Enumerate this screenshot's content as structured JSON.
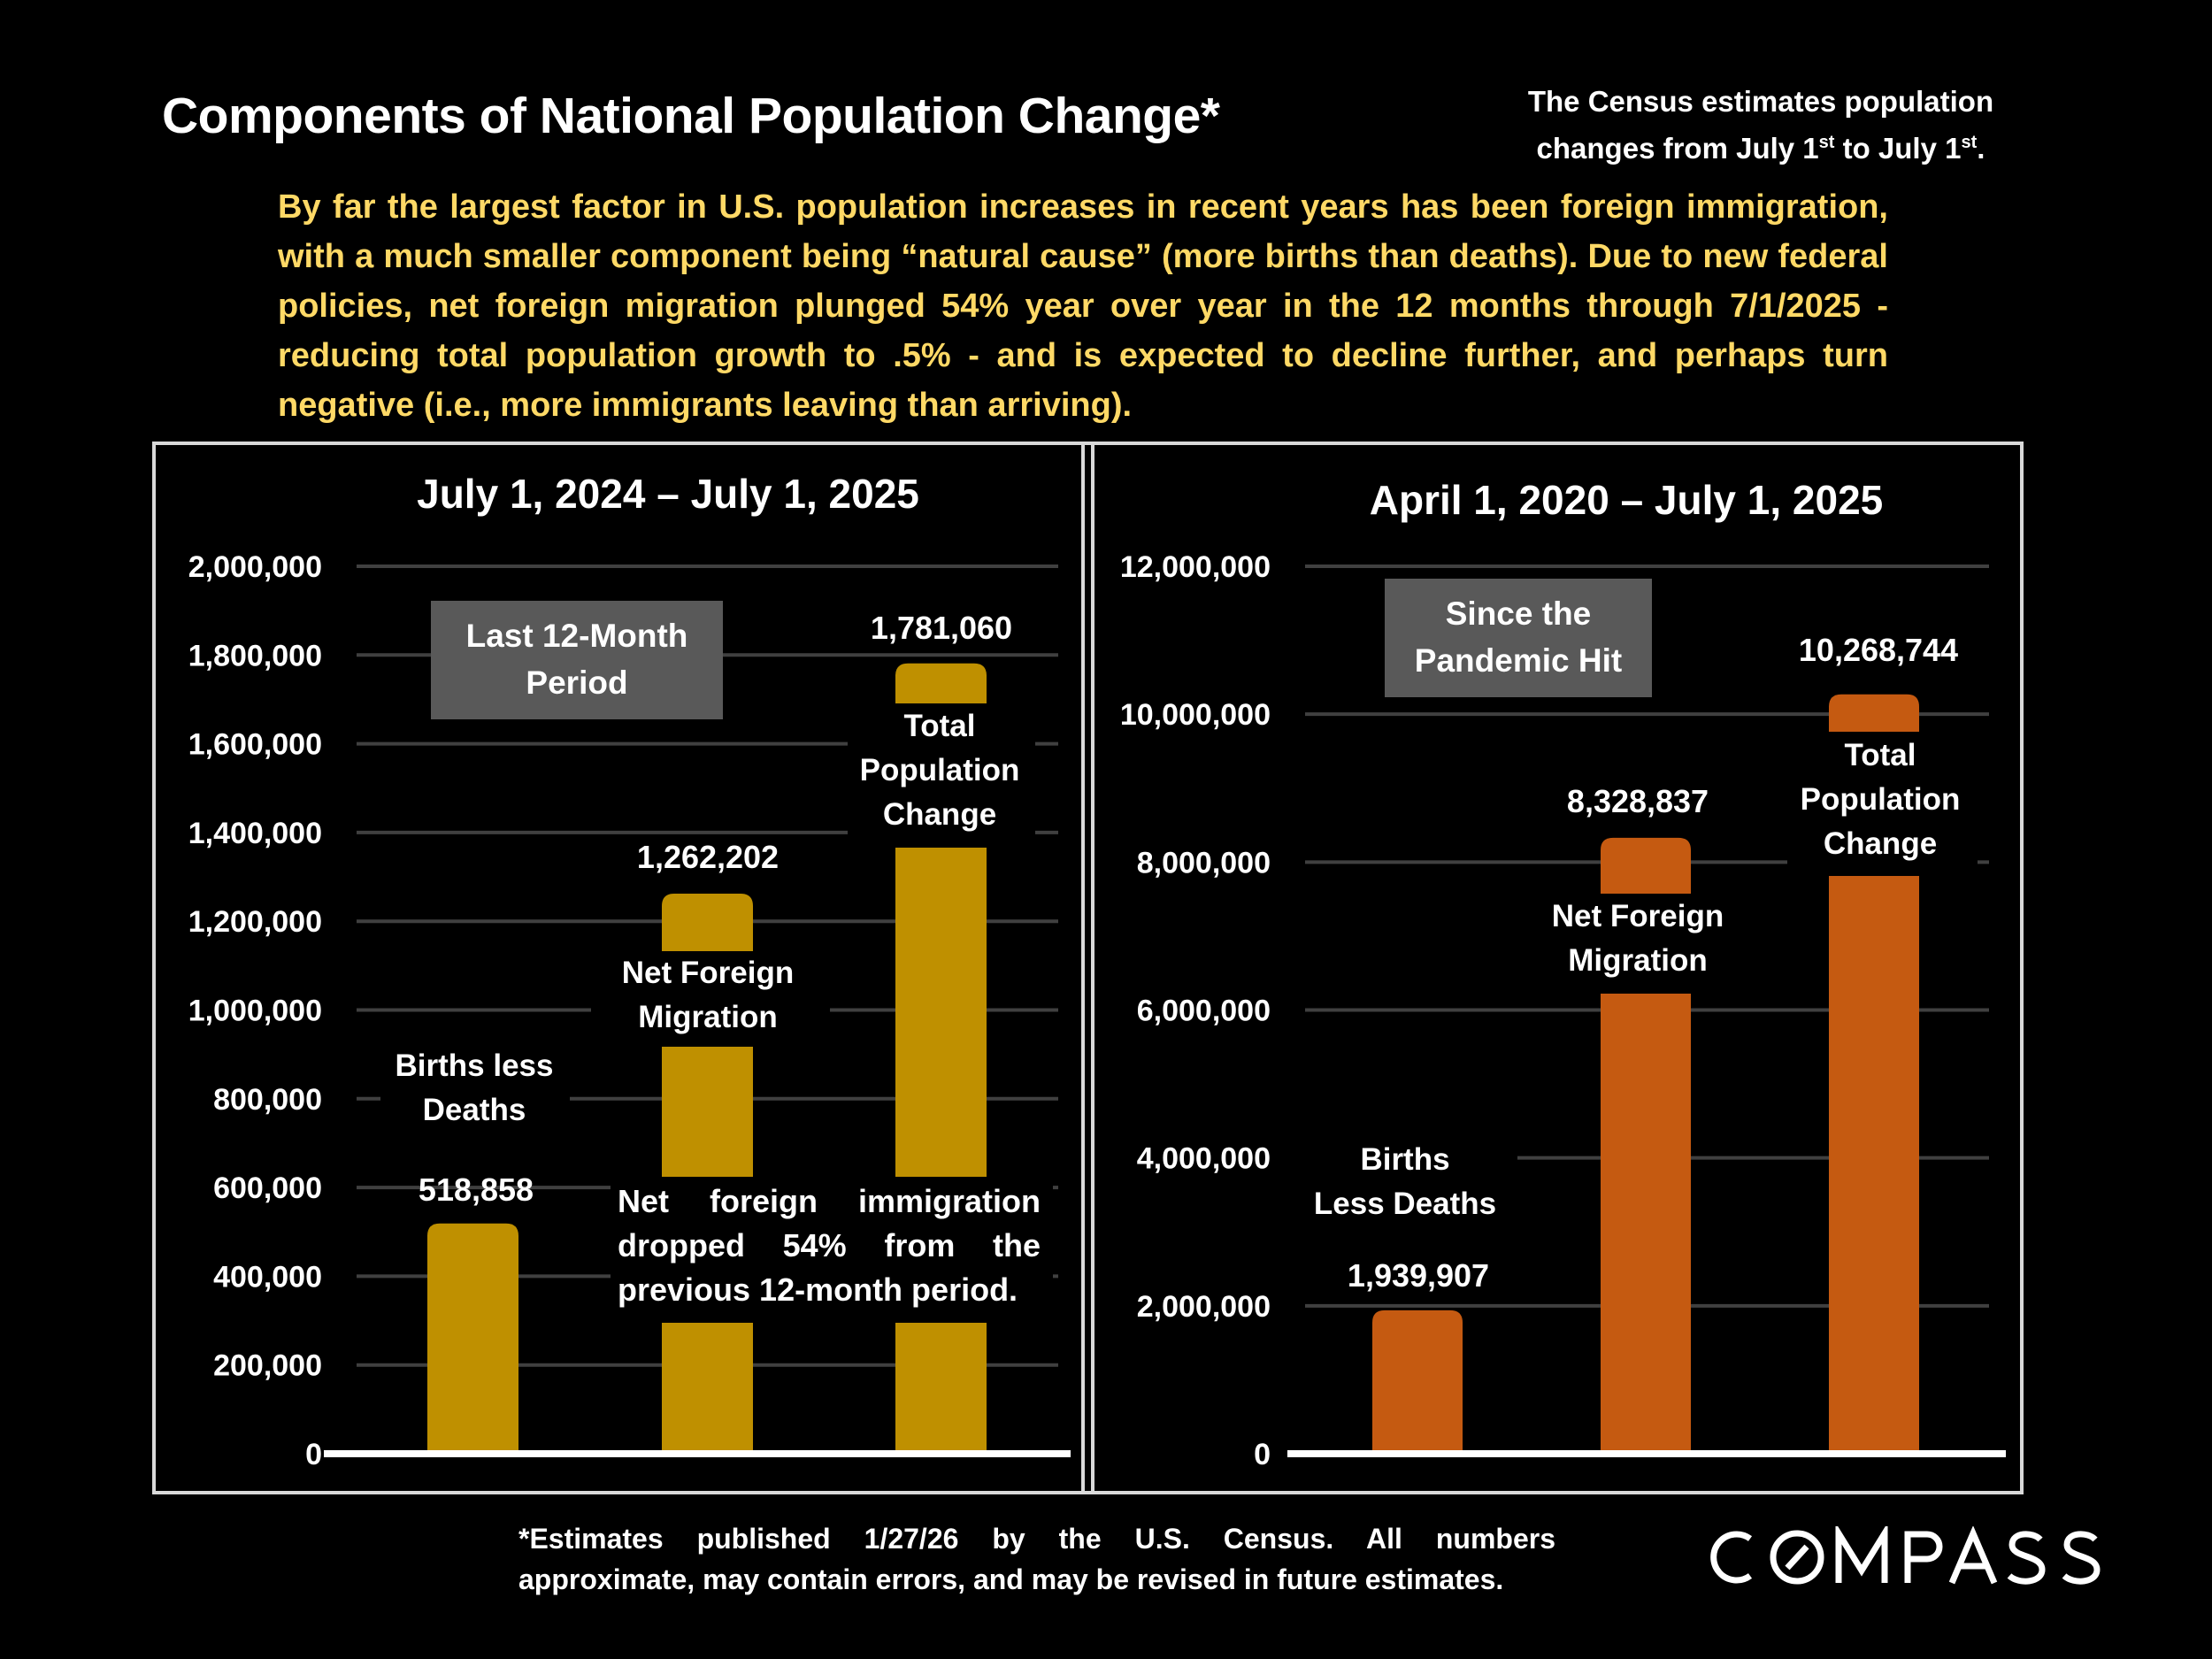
{
  "header": {
    "title": "Components of National Population Change*",
    "census_note_line1": "The Census estimates population",
    "census_note_line2_pre": "changes from July 1",
    "census_note_sup1": "st",
    "census_note_line2_mid": " to July 1",
    "census_note_sup2": "st",
    "census_note_line2_post": "."
  },
  "summary": "By far the largest factor in U.S. population increases in recent years has been foreign immigration, with a much smaller component being “natural cause” (more births than deaths). Due to new federal policies, net foreign migration plunged 54% year over year in the 12 months through 7/1/2025 - reducing total population growth to .5% - and is expected to decline further, and perhaps turn negative (i.e., more immigrants leaving than arriving).",
  "colors": {
    "left_bars": "#BF9000",
    "right_bars": "#C55A11",
    "summary_text": "#FFD966",
    "period_box": "#595959",
    "gridline": "#404040"
  },
  "chart_data": [
    {
      "type": "bar",
      "title": "July 1, 2024 – July 1, 2025",
      "period_box": [
        "Last 12-Month",
        "Period"
      ],
      "categories": [
        [
          "Births less",
          "Deaths"
        ],
        [
          "Net Foreign",
          "Migration"
        ],
        [
          "Total",
          "Population",
          "Change"
        ]
      ],
      "values": [
        518858,
        1262202,
        1781060
      ],
      "data_labels": [
        "518,858",
        "1,262,202",
        "1,781,060"
      ],
      "ylim": [
        0,
        2000000
      ],
      "yticks": [
        0,
        200000,
        400000,
        600000,
        800000,
        1000000,
        1200000,
        1400000,
        1600000,
        1800000,
        2000000
      ],
      "ytick_labels": [
        "0",
        "200,000",
        "400,000",
        "600,000",
        "800,000",
        "1,000,000",
        "1,200,000",
        "1,400,000",
        "1,600,000",
        "1,800,000",
        "2,000,000"
      ],
      "grid": true,
      "annotation": [
        "Net foreign immigration",
        "dropped 54% from the",
        "previous 12-month period."
      ],
      "annotation_words": [
        [
          "Net",
          "foreign",
          "immigration"
        ],
        [
          "dropped",
          "54%",
          "from",
          "the"
        ],
        [
          "previous 12-month period."
        ]
      ],
      "xlabel": "",
      "ylabel": ""
    },
    {
      "type": "bar",
      "title": "April 1, 2020 – July 1, 2025",
      "period_box": [
        "Since the",
        "Pandemic Hit"
      ],
      "categories": [
        [
          "Births",
          "Less Deaths"
        ],
        [
          "Net Foreign",
          "Migration"
        ],
        [
          "Total",
          "Population",
          "Change"
        ]
      ],
      "values": [
        1939907,
        8328837,
        10268744
      ],
      "data_labels": [
        "1,939,907",
        "8,328,837",
        "10,268,744"
      ],
      "ylim": [
        0,
        12000000
      ],
      "yticks": [
        0,
        2000000,
        4000000,
        6000000,
        8000000,
        10000000,
        12000000
      ],
      "ytick_labels": [
        "0",
        "2,000,000",
        "4,000,000",
        "6,000,000",
        "8,000,000",
        "10,000,000",
        "12,000,000"
      ],
      "grid": true,
      "xlabel": "",
      "ylabel": ""
    }
  ],
  "footer": {
    "footnote_line1": "*Estimates published 1/27/26 by the U.S. Census. All numbers",
    "footnote_line2": "approximate, may contain errors, and may be revised in future estimates.",
    "logo_text": "COMPASS"
  }
}
